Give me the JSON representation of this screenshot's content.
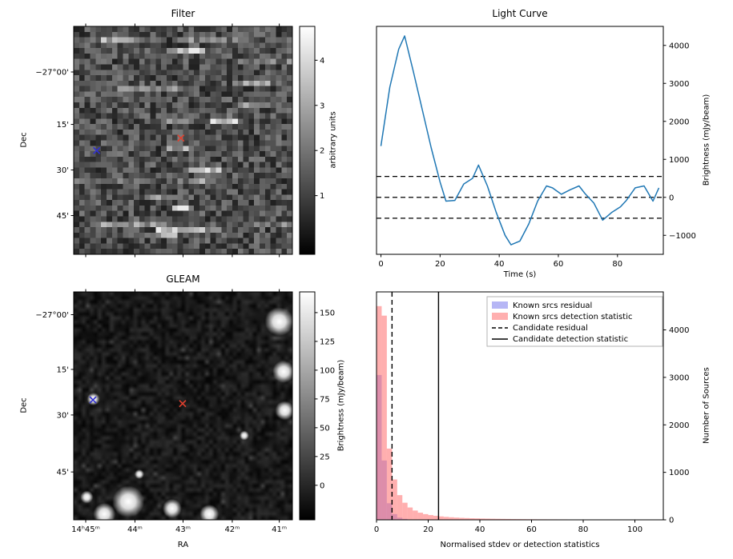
{
  "chart_data": [
    {
      "id": "filter",
      "type": "heatmap",
      "title": "Filter",
      "xlabel": "",
      "ylabel": "Dec",
      "xticks": [
        {
          "f": 0.055,
          "label": ""
        },
        {
          "f": 0.28,
          "label": ""
        },
        {
          "f": 0.5,
          "label": ""
        },
        {
          "f": 0.725,
          "label": ""
        },
        {
          "f": 0.94,
          "label": ""
        }
      ],
      "yticks": [
        {
          "f": 0.2,
          "label": "−27°00'"
        },
        {
          "f": 0.43,
          "label": "15'"
        },
        {
          "f": 0.63,
          "label": "30'"
        },
        {
          "f": 0.83,
          "label": "45'"
        }
      ],
      "colorbar": {
        "label": "arbitrary units",
        "min": -0.3,
        "max": 4.75,
        "ticks": [
          1,
          2,
          3,
          4
        ]
      },
      "markers": [
        {
          "symbol": "x",
          "color": "#3030d0",
          "fx": 0.105,
          "fy": 0.545
        },
        {
          "symbol": "x",
          "color": "#e0402e",
          "fx": 0.49,
          "fy": 0.49
        }
      ]
    },
    {
      "id": "light_curve",
      "type": "line",
      "title": "Light Curve",
      "xlabel": "Time (s)",
      "ylabel": "Brightness (mJy/beam)",
      "xlim": [
        -1.5,
        95.5
      ],
      "ylim": [
        -1500,
        4500
      ],
      "xticks": [
        0,
        20,
        40,
        60,
        80
      ],
      "yticks": [
        -1000,
        0,
        1000,
        2000,
        3000,
        4000
      ],
      "color": "#1f77b4",
      "x": [
        0,
        3,
        6,
        8,
        11,
        14,
        17,
        20,
        22,
        25,
        28,
        31,
        33,
        36,
        39,
        42,
        44,
        47,
        50,
        53,
        56,
        58,
        61,
        64,
        67,
        69,
        72,
        75,
        78,
        81,
        83,
        86,
        89,
        92,
        94
      ],
      "y": [
        1350,
        2900,
        3900,
        4250,
        3300,
        2300,
        1300,
        400,
        -100,
        -80,
        350,
        500,
        850,
        300,
        -400,
        -1000,
        -1250,
        -1150,
        -700,
        -100,
        300,
        250,
        80,
        200,
        300,
        100,
        -150,
        -600,
        -400,
        -250,
        -80,
        250,
        300,
        -100,
        250
      ],
      "hlines": [
        {
          "y": 550,
          "dash": true
        },
        {
          "y": 0,
          "dash": true
        },
        {
          "y": -550,
          "dash": true
        }
      ]
    },
    {
      "id": "gleam",
      "type": "heatmap",
      "title": "GLEAM",
      "xlabel": "RA",
      "ylabel": "Dec",
      "xticks": [
        {
          "f": 0.055,
          "label": "14ʰ45ᵐ"
        },
        {
          "f": 0.28,
          "label": "44ᵐ"
        },
        {
          "f": 0.5,
          "label": "43ᵐ"
        },
        {
          "f": 0.725,
          "label": "42ᵐ"
        },
        {
          "f": 0.94,
          "label": "41ᵐ"
        }
      ],
      "yticks": [
        {
          "f": 0.1,
          "label": "−27°00'"
        },
        {
          "f": 0.34,
          "label": "15'"
        },
        {
          "f": 0.54,
          "label": "30'"
        },
        {
          "f": 0.79,
          "label": "45'"
        }
      ],
      "colorbar": {
        "label": "Brightness (mJy/beam)",
        "min": -30,
        "max": 168,
        "ticks": [
          0,
          25,
          50,
          75,
          100,
          125,
          150
        ]
      },
      "markers": [
        {
          "symbol": "x",
          "color": "#3030d0",
          "fx": 0.088,
          "fy": 0.474
        },
        {
          "symbol": "x",
          "color": "#e0402e",
          "fx": 0.498,
          "fy": 0.49
        }
      ],
      "sources": [
        [
          0.94,
          0.13,
          9
        ],
        [
          0.96,
          0.35,
          7
        ],
        [
          0.25,
          0.92,
          10
        ],
        [
          0.14,
          0.975,
          7
        ],
        [
          0.45,
          0.95,
          6
        ],
        [
          0.62,
          0.975,
          6
        ],
        [
          0.965,
          0.52,
          6
        ],
        [
          0.09,
          0.47,
          4
        ],
        [
          0.78,
          0.63,
          3
        ],
        [
          0.3,
          0.8,
          3
        ],
        [
          0.06,
          0.9,
          4
        ]
      ]
    },
    {
      "id": "histogram",
      "type": "bar",
      "title": "",
      "xlabel": "Normalised stdev or detection statistics",
      "ylabel": "Number of Sources",
      "xlim": [
        0,
        111
      ],
      "ylim": [
        0,
        4800
      ],
      "xticks": [
        0,
        20,
        40,
        60,
        80,
        100
      ],
      "yticks": [
        0,
        1000,
        2000,
        3000,
        4000
      ],
      "bin_start": 0,
      "bin_width": 2,
      "series": [
        {
          "name": "Known srcs residual",
          "color": "rgba(110,110,235,0.5)",
          "values": [
            3050,
            1250,
            350,
            120,
            45,
            20,
            8,
            4,
            2,
            1
          ]
        },
        {
          "name": "Known srcs detection statistic",
          "color": "rgba(255,110,110,0.55)",
          "values": [
            4500,
            4300,
            1500,
            850,
            520,
            360,
            260,
            195,
            150,
            120,
            100,
            85,
            72,
            62,
            54,
            47,
            42,
            37,
            33,
            30,
            27,
            25,
            23,
            21,
            19,
            18,
            16,
            15,
            14,
            13,
            12,
            11,
            11,
            10,
            10,
            9,
            9,
            8,
            8,
            7,
            7,
            6,
            6,
            6,
            5,
            5,
            5,
            4,
            4,
            4,
            4,
            3,
            3,
            3,
            3
          ]
        }
      ],
      "vlines": [
        {
          "x": 6,
          "dash": true,
          "label": "Candidate residual"
        },
        {
          "x": 24,
          "dash": false,
          "label": "Candidate detection statistic"
        }
      ],
      "legend": [
        {
          "type": "patch",
          "color": "rgba(110,110,235,0.5)",
          "label": "Known srcs residual"
        },
        {
          "type": "patch",
          "color": "rgba(255,110,110,0.55)",
          "label": "Known srcs detection statistic"
        },
        {
          "type": "dashed-line",
          "label": "Candidate residual"
        },
        {
          "type": "solid-line",
          "label": "Candidate detection statistic"
        }
      ]
    }
  ]
}
